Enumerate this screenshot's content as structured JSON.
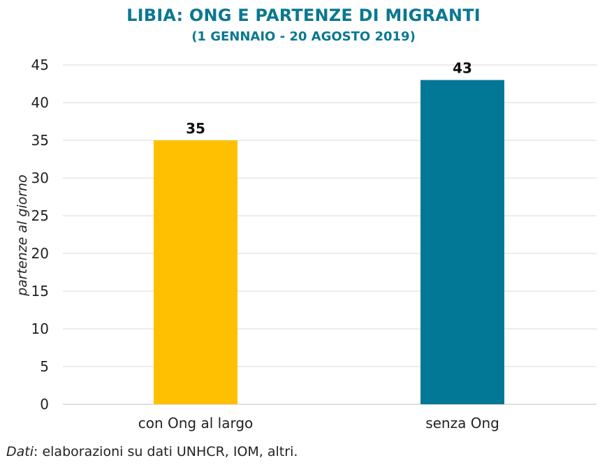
{
  "title": "LIBIA: ONG E PARTENZE DI MIGRANTI",
  "subtitle": "(1 GENNAIO - 20 AGOSTO 2019)",
  "source": {
    "label": "Dati",
    "text": ": elaborazioni su dati UNHCR, IOM, altri."
  },
  "colors": {
    "title": "#0a7892",
    "bar_1": "#fec000",
    "bar_2": "#037896",
    "grid": "#d9d9d9",
    "text": "#222222"
  },
  "chart_data": {
    "type": "bar",
    "categories": [
      "con Ong al largo",
      "senza Ong"
    ],
    "values": [
      35,
      43
    ],
    "data_labels": [
      "35",
      "43"
    ],
    "ylabel": "partenze al giorno",
    "ylim": [
      0,
      45
    ],
    "yticks": [
      0,
      5,
      10,
      15,
      20,
      25,
      30,
      35,
      40,
      45
    ],
    "grid": true,
    "legend": "none"
  }
}
